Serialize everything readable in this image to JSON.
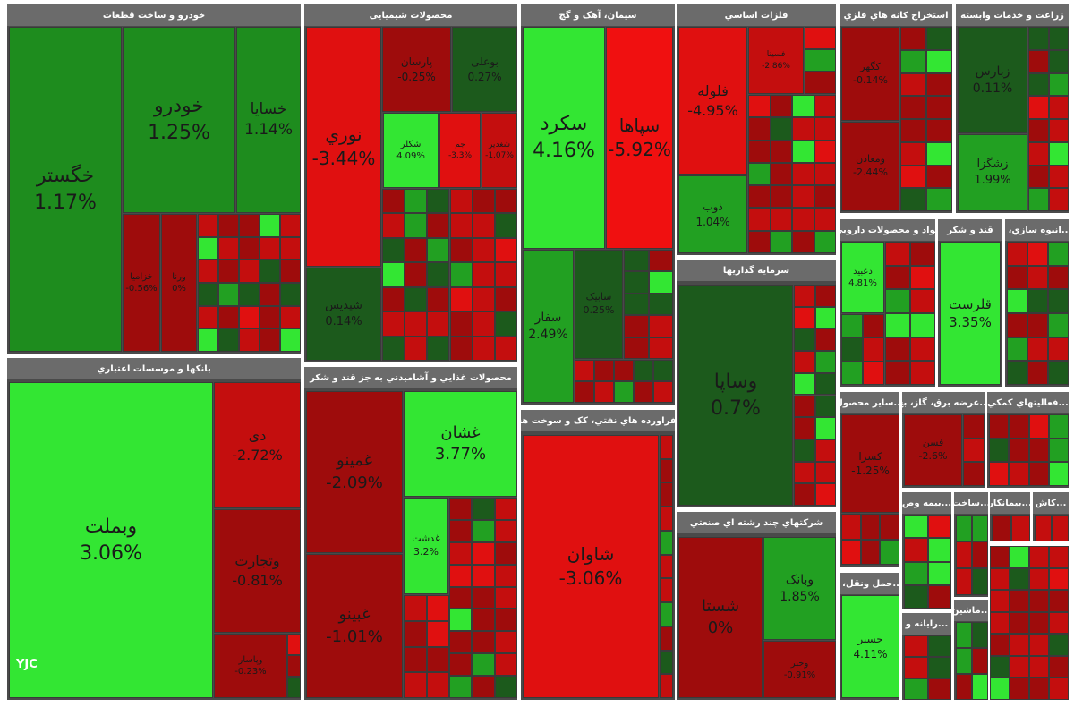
{
  "logo": "YJC",
  "sectors": [
    {
      "title": "خودرو و ساخت قطعات",
      "tiles": [
        {
          "name": "خگستر",
          "change": "1.17%"
        },
        {
          "name": "خودرو",
          "change": "1.25%"
        },
        {
          "name": "خسایا",
          "change": "1.14%"
        },
        {
          "name": "خزامیا",
          "change": "-0.56%"
        },
        {
          "name": "ورنا",
          "change": "0%"
        }
      ]
    },
    {
      "title": "بانکها و موسسات اعتباري",
      "tiles": [
        {
          "name": "وبملت",
          "change": "3.06%"
        },
        {
          "name": "دی",
          "change": "-2.72%"
        },
        {
          "name": "وتجارت",
          "change": "-0.81%"
        },
        {
          "name": "وپاسار",
          "change": "-0.23%"
        }
      ]
    },
    {
      "title": "محصولات شیمیایی",
      "tiles": [
        {
          "name": "نوري",
          "change": "-3.44%"
        },
        {
          "name": "شپدیس",
          "change": "0.14%"
        },
        {
          "name": "پارسان",
          "change": "-0.25%"
        },
        {
          "name": "بوعلی",
          "change": "0.27%"
        },
        {
          "name": "شکلر",
          "change": "4.09%"
        },
        {
          "name": "جم",
          "change": "-3.3%"
        },
        {
          "name": "شغدیر",
          "change": "-1.07%"
        }
      ]
    },
    {
      "title": "محصولات غذایي و آشامیدني به جز قند و شکر",
      "tiles": [
        {
          "name": "غمینو",
          "change": "-2.09%"
        },
        {
          "name": "غبینو",
          "change": "-1.01%"
        },
        {
          "name": "غشان",
          "change": "3.77%"
        },
        {
          "name": "غدشت",
          "change": "3.2%"
        }
      ]
    },
    {
      "title": "سیمان، آهک و گچ",
      "tiles": [
        {
          "name": "سکرد",
          "change": "4.16%"
        },
        {
          "name": "سپاها",
          "change": "-5.92%"
        },
        {
          "name": "سفار",
          "change": "2.49%"
        },
        {
          "name": "سابیک",
          "change": "0.25%"
        }
      ]
    },
    {
      "title": "...فراورده هاي نفتي، کک و سوخت هس",
      "tiles": [
        {
          "name": "شاوان",
          "change": "-3.06%"
        }
      ]
    },
    {
      "title": "فلزات اساسي",
      "tiles": [
        {
          "name": "فلوله",
          "change": "-4.95%"
        },
        {
          "name": "ذوب",
          "change": "1.04%"
        },
        {
          "name": "فسینا",
          "change": "-2.86%"
        }
      ]
    },
    {
      "title": "سرمایه گذاریها",
      "tiles": [
        {
          "name": "وساپا",
          "change": "0.7%"
        }
      ]
    },
    {
      "title": "شرکتهاي چند رشته اي صنعتي",
      "tiles": [
        {
          "name": "شستا",
          "change": "0%"
        },
        {
          "name": "وبانک",
          "change": "1.85%"
        },
        {
          "name": "وخبر",
          "change": "-0.91%"
        }
      ]
    },
    {
      "title": "استخراج کانه هاي فلزي",
      "tiles": [
        {
          "name": "کگهر",
          "change": "-0.14%"
        },
        {
          "name": "ومعادن",
          "change": "-2.44%"
        }
      ]
    },
    {
      "title": "زراعت و خدمات وابسته",
      "tiles": [
        {
          "name": "زبارس",
          "change": "0.11%"
        },
        {
          "name": "زشگزا",
          "change": "1.99%"
        }
      ]
    },
    {
      "title": "مواد و محصولات دارويي",
      "tiles": [
        {
          "name": "دعبید",
          "change": "4.81%"
        }
      ]
    },
    {
      "title": "قند و شکر",
      "tiles": [
        {
          "name": "قلرست",
          "change": "3.35%"
        }
      ]
    },
    {
      "title": "...انبوه سازي، ا",
      "tiles": []
    },
    {
      "title": "...سایر محصول",
      "tiles": [
        {
          "name": "کسرا",
          "change": "-1.25%"
        }
      ]
    },
    {
      "title": "...عرضه برق، گاز، بخ",
      "tiles": [
        {
          "name": "فسن",
          "change": "-2.6%"
        }
      ]
    },
    {
      "title": "...فعالیتهاي کمکي",
      "tiles": []
    },
    {
      "title": "...حمل ونقل، ا",
      "tiles": [
        {
          "name": "حسیر",
          "change": "4.11%"
        }
      ]
    },
    {
      "title": "...بیمه وص",
      "tiles": []
    },
    {
      "title": "...ساخت",
      "tiles": []
    },
    {
      "title": "...بیمانکار",
      "tiles": []
    },
    {
      "title": "...کاش",
      "tiles": []
    },
    {
      "title": "...رایانه و",
      "tiles": []
    },
    {
      "title": "...ماشین",
      "tiles": []
    }
  ]
}
